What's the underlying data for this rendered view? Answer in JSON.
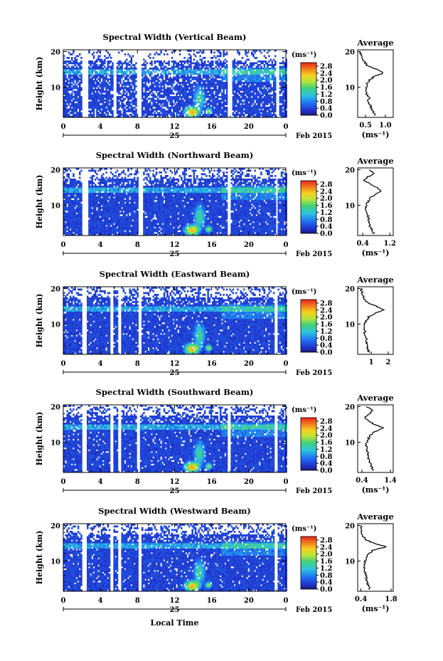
{
  "chart_data": [
    {
      "type": "heatmap",
      "title": "Spectral Width (Vertical Beam)",
      "ylabel": "Height (km)",
      "x_ticks": [
        "0",
        "4",
        "8",
        "12",
        "16",
        "20",
        "0"
      ],
      "date_label": "25",
      "month_year": "Feb 2015",
      "xlim": [
        0,
        24
      ],
      "ylim": [
        1.5,
        20.5
      ],
      "y_ticks": [
        "20",
        "10"
      ],
      "colorbar": {
        "unit": "(ms⁻¹)",
        "ticks": [
          "2.8",
          "2.4",
          "2.0",
          "1.6",
          "1.2",
          "0.8",
          "0.4",
          "0.0"
        ],
        "range": [
          0.0,
          3.0
        ]
      },
      "gaps_hours": [
        [
          2.0,
          2.6
        ],
        [
          5.3,
          5.7
        ],
        [
          7.8,
          8.4
        ],
        [
          17.7,
          18.1
        ],
        [
          22.8,
          23.2
        ]
      ],
      "average": {
        "title": "Average",
        "xlabel": "(ms⁻¹)",
        "x_ticks": [
          "0.5",
          "1.0"
        ],
        "xlim": [
          0.3,
          1.2
        ],
        "y_ticks": [
          "20",
          "10"
        ],
        "height_km": [
          2,
          3,
          4,
          5,
          6,
          7,
          8,
          9,
          10,
          11,
          12,
          13,
          14,
          15,
          16,
          17,
          18,
          19,
          20
        ],
        "values": [
          0.73,
          0.7,
          0.65,
          0.62,
          0.56,
          0.6,
          0.53,
          0.52,
          0.51,
          0.54,
          0.6,
          0.72,
          0.95,
          0.78,
          0.55,
          0.48,
          0.42,
          0.38,
          0.36
        ]
      }
    },
    {
      "type": "heatmap",
      "title": "Spectral Width (Northward Beam)",
      "ylabel": "Height (km)",
      "x_ticks": [
        "0",
        "4",
        "8",
        "12",
        "16",
        "20",
        "0"
      ],
      "date_label": "25",
      "month_year": "Feb 2015",
      "xlim": [
        0,
        24
      ],
      "ylim": [
        1.5,
        20.5
      ],
      "y_ticks": [
        "20",
        "10"
      ],
      "colorbar": {
        "unit": "(ms⁻¹)",
        "ticks": [
          "2.8",
          "2.4",
          "2.0",
          "1.6",
          "1.2",
          "0.8",
          "0.4",
          "0.0"
        ],
        "range": [
          0.0,
          3.0
        ]
      },
      "gaps_hours": [
        [
          2.0,
          2.6
        ],
        [
          8.0,
          8.5
        ],
        [
          17.6,
          18.0
        ],
        [
          22.8,
          23.1
        ]
      ],
      "average": {
        "title": "Average",
        "xlabel": "(ms⁻¹)",
        "x_ticks": [
          "0.4",
          "1.2"
        ],
        "xlim": [
          0.25,
          1.3
        ],
        "y_ticks": [
          "20",
          "10"
        ],
        "height_km": [
          2,
          3,
          4,
          5,
          6,
          7,
          8,
          9,
          10,
          11,
          12,
          13,
          14,
          15,
          16,
          17,
          18,
          19,
          20
        ],
        "values": [
          0.72,
          0.68,
          0.62,
          0.6,
          0.58,
          0.56,
          0.52,
          0.48,
          0.5,
          0.55,
          0.62,
          0.75,
          0.95,
          0.8,
          0.6,
          0.45,
          0.55,
          0.75,
          0.6
        ]
      }
    },
    {
      "type": "heatmap",
      "title": "Spectral Width (Eastward Beam)",
      "ylabel": "Height (km)",
      "x_ticks": [
        "0",
        "4",
        "8",
        "12",
        "16",
        "20",
        "0"
      ],
      "date_label": "25",
      "month_year": "Feb 2015",
      "xlim": [
        0,
        24
      ],
      "ylim": [
        1.5,
        20.5
      ],
      "y_ticks": [
        "20",
        "10"
      ],
      "colorbar": {
        "unit": "(ms⁻¹)",
        "ticks": [
          "2.8",
          "2.4",
          "2.0",
          "1.6",
          "1.2",
          "0.8",
          "0.4",
          "0.0"
        ],
        "range": [
          0.0,
          3.0
        ]
      },
      "gaps_hours": [
        [
          2.0,
          2.5
        ],
        [
          5.0,
          5.3
        ],
        [
          5.8,
          6.1
        ],
        [
          8.0,
          8.4
        ],
        [
          22.7,
          23.0
        ]
      ],
      "average": {
        "title": "Average",
        "xlabel": "",
        "x_ticks": [
          "1",
          "2"
        ],
        "xlim": [
          0.2,
          2.3
        ],
        "y_ticks": [
          "20",
          "10"
        ],
        "height_km": [
          2,
          3,
          4,
          5,
          6,
          7,
          8,
          9,
          10,
          11,
          12,
          13,
          14,
          15,
          16,
          17,
          18,
          19,
          20
        ],
        "values": [
          0.85,
          0.8,
          0.75,
          0.72,
          0.7,
          0.65,
          0.6,
          0.58,
          0.62,
          0.7,
          0.85,
          1.2,
          1.8,
          1.3,
          0.8,
          0.6,
          0.5,
          0.45,
          0.4
        ]
      }
    },
    {
      "type": "heatmap",
      "title": "Spectral Width (Southward Beam)",
      "ylabel": "Height (km)",
      "x_ticks": [
        "0",
        "4",
        "8",
        "12",
        "16",
        "20",
        "0"
      ],
      "date_label": "25",
      "month_year": "Feb 2015",
      "xlim": [
        0,
        24
      ],
      "ylim": [
        1.5,
        20.5
      ],
      "y_ticks": [
        "20",
        "10"
      ],
      "colorbar": {
        "unit": "(ms⁻¹)",
        "ticks": [
          "2.8",
          "2.4",
          "2.0",
          "1.6",
          "1.2",
          "0.8",
          "0.4",
          "0.0"
        ],
        "range": [
          0.0,
          3.0
        ]
      },
      "gaps_hours": [
        [
          2.0,
          2.5
        ],
        [
          5.0,
          5.3
        ],
        [
          5.8,
          6.1
        ],
        [
          7.8,
          8.2
        ],
        [
          17.7,
          18.0
        ],
        [
          22.7,
          23.0
        ]
      ],
      "average": {
        "title": "Average",
        "xlabel": "(ms⁻¹)",
        "x_ticks": [
          "0.4",
          "1.4"
        ],
        "xlim": [
          0.25,
          1.5
        ],
        "y_ticks": [
          "20",
          "10"
        ],
        "height_km": [
          2,
          3,
          4,
          5,
          6,
          7,
          8,
          9,
          10,
          11,
          12,
          13,
          14,
          15,
          16,
          17,
          18,
          19,
          20
        ],
        "values": [
          0.8,
          0.75,
          0.7,
          0.65,
          0.62,
          0.6,
          0.58,
          0.55,
          0.58,
          0.62,
          0.7,
          0.85,
          1.15,
          0.85,
          0.6,
          0.5,
          0.65,
          0.8,
          0.55
        ]
      }
    },
    {
      "type": "heatmap",
      "title": "Spectral Width (Westward Beam)",
      "ylabel": "Height (km)",
      "xlabel": "Local Time",
      "x_ticks": [
        "0",
        "4",
        "8",
        "12",
        "16",
        "20",
        "0"
      ],
      "date_label": "25",
      "month_year": "Feb 2015",
      "xlim": [
        0,
        24
      ],
      "ylim": [
        1.5,
        20.5
      ],
      "y_ticks": [
        "20",
        "10"
      ],
      "colorbar": {
        "unit": "(ms⁻¹)",
        "ticks": [
          "2.8",
          "2.4",
          "2.0",
          "1.6",
          "1.2",
          "0.8",
          "0.4",
          "0.0"
        ],
        "range": [
          0.0,
          3.0
        ]
      },
      "gaps_hours": [
        [
          2.0,
          2.5
        ],
        [
          5.0,
          5.3
        ],
        [
          5.8,
          6.1
        ],
        [
          8.0,
          8.4
        ],
        [
          22.7,
          23.0
        ]
      ],
      "average": {
        "title": "Average",
        "xlabel": "(ms⁻¹)",
        "x_ticks": [
          "0.4",
          "1.8"
        ],
        "xlim": [
          0.25,
          1.9
        ],
        "y_ticks": [
          "20",
          "10"
        ],
        "height_km": [
          2,
          3,
          4,
          5,
          6,
          7,
          8,
          9,
          10,
          11,
          12,
          13,
          14,
          15,
          16,
          17,
          18,
          19,
          20
        ],
        "values": [
          0.8,
          0.75,
          0.7,
          0.65,
          0.62,
          0.6,
          0.58,
          0.55,
          0.6,
          0.65,
          0.75,
          0.95,
          1.6,
          1.0,
          0.62,
          0.5,
          0.45,
          0.42,
          0.4
        ]
      }
    }
  ],
  "colors": {
    "low": "#1b1b6e",
    "mid": "#2ec4e0",
    "high": "#e8221b",
    "missing": "#ffffff"
  }
}
